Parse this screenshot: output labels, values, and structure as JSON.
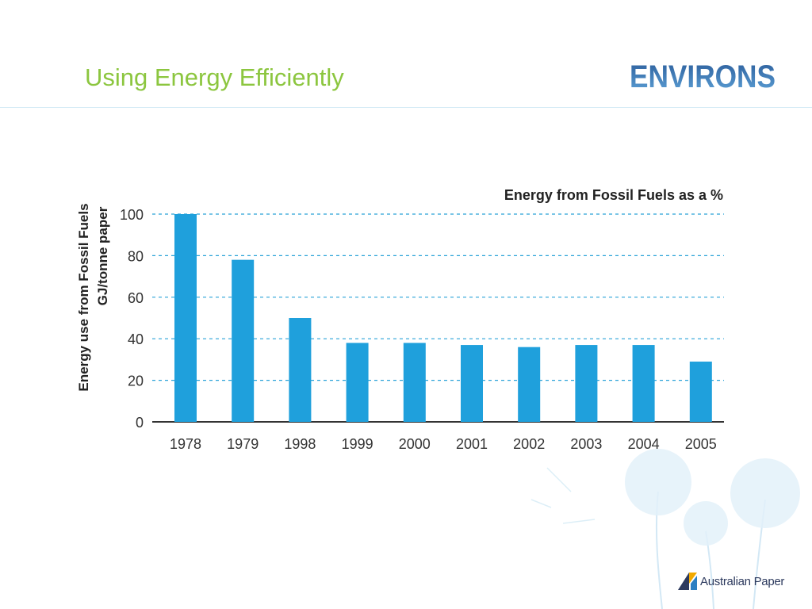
{
  "slide": {
    "title": "Using Energy Efficiently",
    "brand": "ENVIRONS",
    "footer_brand": "Australian Paper"
  },
  "colors": {
    "title": "#8cc63f",
    "bar": "#1fa0dc",
    "grid": "#2aa2d8",
    "axis": "#333333",
    "brand": "#2f5e95"
  },
  "chart_data": {
    "type": "bar",
    "title": "Energy from Fossil Fuels as a %",
    "ylabel": [
      "Energy use from Fossil Fuels",
      "GJ/tonne paper"
    ],
    "xlabel": "",
    "categories": [
      "1978",
      "1979",
      "1998",
      "1999",
      "2000",
      "2001",
      "2002",
      "2003",
      "2004",
      "2005"
    ],
    "values": [
      100,
      78,
      50,
      38,
      38,
      37,
      36,
      37,
      37,
      29
    ],
    "ylim": [
      0,
      100
    ],
    "yticks": [
      "0",
      "20",
      "40",
      "60",
      "80",
      "100"
    ],
    "grid": "horizontal dashed",
    "legend": "none"
  }
}
